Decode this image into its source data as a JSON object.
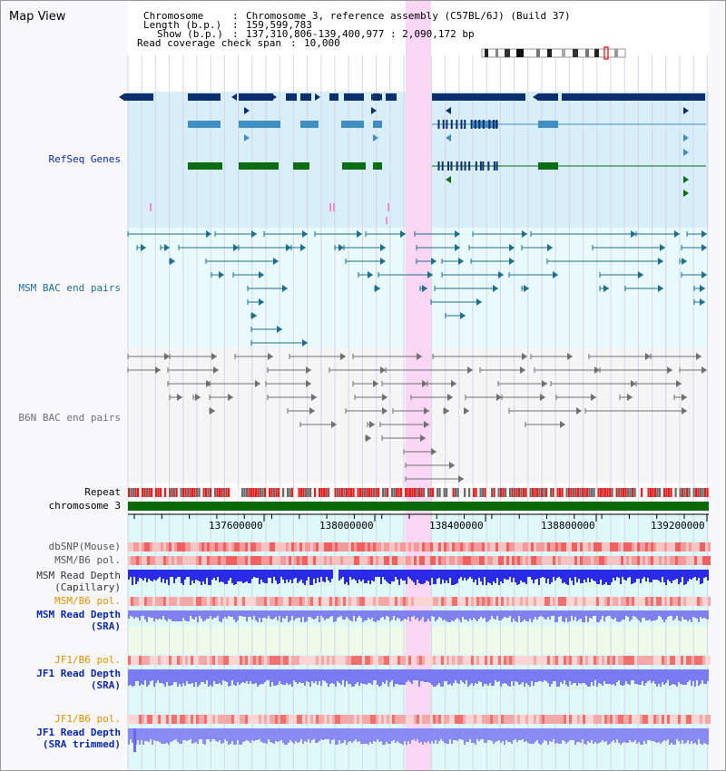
{
  "header": {
    "map_title": "Map View",
    "chromosome_label": "Chromosome",
    "chromosome_value": "Chromosome 3, reference assembly (C57BL/6J) (Build 37)",
    "length_label": "Length (b.p.)",
    "length_value": "159,599,783",
    "show_label": "Show (b.p.)",
    "show_value": "137,310,806-139,400,977 : 2,090,172 bp",
    "coverage_label": "Read coverage check span",
    "coverage_value": "10,000"
  },
  "tracks": {
    "refseq": "RefSeq Genes",
    "msm_bac": "MSM BAC end pairs",
    "b6n_bac": "B6N BAC end pairs",
    "repeat": "Repeat",
    "chromosome": "chromosome 3",
    "dbsnp": "dbSNP(Mouse)",
    "msm_b6_pol_1": "MSM/B6 pol.",
    "msm_depth_cap_1": "MSM Read Depth",
    "msm_depth_cap_2": "(Capillary)",
    "msm_b6_pol_2": "MSM/B6 pol.",
    "msm_depth_sra_1": "MSM Read Depth",
    "msm_depth_sra_2": "(SRA)",
    "jf1_b6_pol_1": "JF1/B6 pol.",
    "jf1_depth_sra_1": "JF1 Read Depth",
    "jf1_depth_sra_2": "(SRA)",
    "jf1_b6_pol_2": "JF1/B6 pol.",
    "jf1_depth_trim_1": "JF1 Read Depth",
    "jf1_depth_trim_2": "(SRA trimmed)"
  },
  "axis": {
    "ticks": [
      "137600000",
      "138000000",
      "138400000",
      "138800000",
      "139200000"
    ]
  },
  "colors": {
    "refseq_dark": "#0b2f6e",
    "refseq_mid": "#3f8fc2",
    "refseq_green": "#0b6e14",
    "msm_bac": "#1f6e8e",
    "b6n_bac": "#707070",
    "label_blue": "#0b2aa8",
    "label_teal": "#1f6e8e",
    "label_orange": "#e09000",
    "highlight": "#f9d6f3"
  }
}
